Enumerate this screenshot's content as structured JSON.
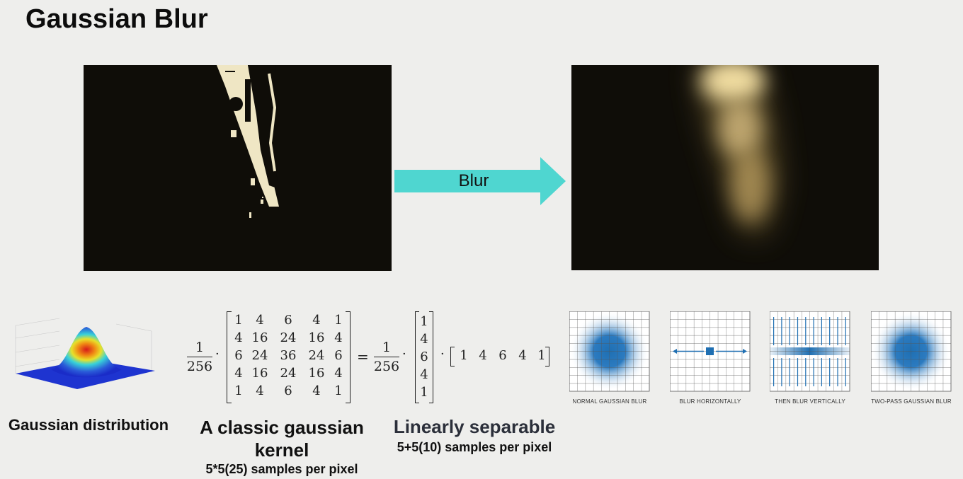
{
  "slide": {
    "title": "Gaussian Blur"
  },
  "arrow": {
    "label": "Blur"
  },
  "kernel": {
    "scalar_numerator": "1",
    "scalar_denominator": "256",
    "matrix": [
      [
        "1",
        "4",
        "6",
        "4",
        "1"
      ],
      [
        "4",
        "16",
        "24",
        "16",
        "4"
      ],
      [
        "6",
        "24",
        "36",
        "24",
        "6"
      ],
      [
        "4",
        "16",
        "24",
        "16",
        "4"
      ],
      [
        "1",
        "4",
        "6",
        "4",
        "1"
      ]
    ],
    "column_vector": [
      "1",
      "4",
      "6",
      "4",
      "1"
    ],
    "row_vector": [
      "1",
      "4",
      "6",
      "4",
      "1"
    ],
    "dot": "·",
    "equals": "="
  },
  "captions": {
    "gaussian_distribution": "Gaussian distribution",
    "classic_kernel": "A classic gaussian kernel",
    "classic_kernel_samples": "5*5(25) samples per pixel",
    "linearly_separable": "Linearly separable",
    "separable_samples": "5+5(10) samples per pixel"
  },
  "blur_steps": [
    {
      "label": "NORMAL GAUSSIAN BLUR"
    },
    {
      "label": "BLUR HORIZONTALLY"
    },
    {
      "label": "THEN BLUR VERTICALLY"
    },
    {
      "label": "TWO-PASS GAUSSIAN BLUR"
    }
  ],
  "colors": {
    "arrow": "#4fd6d0",
    "grid_blue": "#1f6fb2",
    "bright_shape": "#efe6c4"
  }
}
